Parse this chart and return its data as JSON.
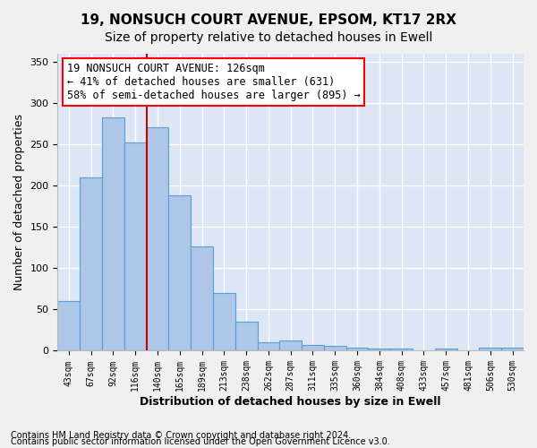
{
  "title1": "19, NONSUCH COURT AVENUE, EPSOM, KT17 2RX",
  "title2": "Size of property relative to detached houses in Ewell",
  "xlabel": "Distribution of detached houses by size in Ewell",
  "ylabel": "Number of detached properties",
  "footnote1": "Contains HM Land Registry data © Crown copyright and database right 2024.",
  "footnote2": "Contains public sector information licensed under the Open Government Licence v3.0.",
  "annotation_line1": "19 NONSUCH COURT AVENUE: 126sqm",
  "annotation_line2": "← 41% of detached houses are smaller (631)",
  "annotation_line3": "58% of semi-detached houses are larger (895) →",
  "bar_categories": [
    "43sqm",
    "67sqm",
    "92sqm",
    "116sqm",
    "140sqm",
    "165sqm",
    "189sqm",
    "213sqm",
    "238sqm",
    "262sqm",
    "287sqm",
    "311sqm",
    "335sqm",
    "360sqm",
    "384sqm",
    "408sqm",
    "433sqm",
    "457sqm",
    "481sqm",
    "506sqm",
    "530sqm"
  ],
  "bar_values": [
    60,
    210,
    283,
    253,
    271,
    188,
    127,
    70,
    35,
    10,
    12,
    7,
    6,
    4,
    3,
    3,
    1,
    3,
    1,
    4,
    4
  ],
  "bar_color": "#aec6e8",
  "bar_edge_color": "#5a9fd4",
  "vline_color": "#cc0000",
  "vline_pos": 3.5,
  "ylim": [
    0,
    360
  ],
  "yticks": [
    0,
    50,
    100,
    150,
    200,
    250,
    300,
    350
  ],
  "background_color": "#dde6f5",
  "grid_color": "#ffffff",
  "title1_fontsize": 11,
  "title2_fontsize": 10,
  "annotation_fontsize": 8.5,
  "xlabel_fontsize": 9,
  "ylabel_fontsize": 9,
  "footnote_fontsize": 7
}
